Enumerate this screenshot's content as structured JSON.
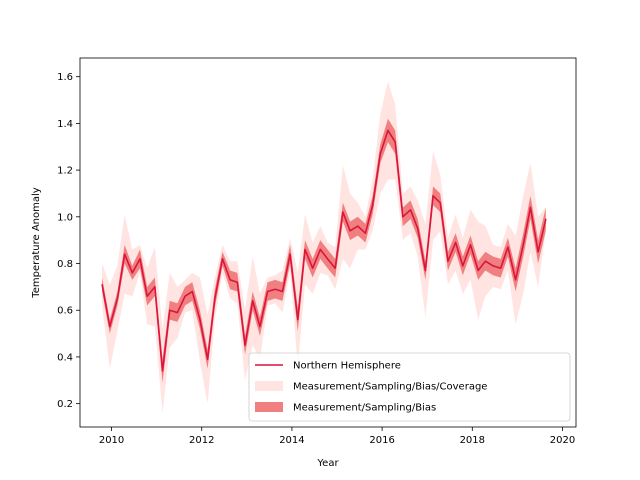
{
  "chart_data": {
    "type": "line",
    "title": "",
    "xlabel": "Year",
    "ylabel": "Temperature Anomaly",
    "xlim": [
      2009.3,
      2020.3
    ],
    "ylim": [
      0.1,
      1.68
    ],
    "x_ticks": [
      2010,
      2012,
      2014,
      2016,
      2018,
      2020
    ],
    "y_ticks": [
      0.2,
      0.4,
      0.6,
      0.8,
      1.0,
      1.2,
      1.4,
      1.6
    ],
    "x_tick_labels": [
      "2010",
      "2012",
      "2014",
      "2016",
      "2018",
      "2020"
    ],
    "y_tick_labels": [
      "0.2",
      "0.4",
      "0.6",
      "0.8",
      "1.0",
      "1.2",
      "1.4",
      "1.6"
    ],
    "grid": false,
    "legend_position": "lower-right",
    "legend": [
      {
        "label": "Northern Hemisphere",
        "kind": "line",
        "color": "#dc143c"
      },
      {
        "label": "Measurement/Sampling/Bias/Coverage",
        "kind": "band",
        "color": "#ffe4e1"
      },
      {
        "label": "Measurement/Sampling/Bias",
        "kind": "band",
        "color": "#f08080"
      }
    ],
    "series": [
      {
        "name": "Northern Hemisphere",
        "color": "#dc143c",
        "inner_band_color": "#f08080",
        "outer_band_color": "#ffe4e1",
        "x": [
          2009.79,
          2009.96,
          2010.13,
          2010.29,
          2010.46,
          2010.63,
          2010.79,
          2010.96,
          2011.13,
          2011.29,
          2011.46,
          2011.63,
          2011.79,
          2011.96,
          2012.13,
          2012.29,
          2012.46,
          2012.63,
          2012.79,
          2012.96,
          2013.13,
          2013.29,
          2013.46,
          2013.63,
          2013.79,
          2013.96,
          2014.13,
          2014.29,
          2014.46,
          2014.63,
          2014.79,
          2014.96,
          2015.13,
          2015.29,
          2015.46,
          2015.63,
          2015.79,
          2015.96,
          2016.13,
          2016.29,
          2016.46,
          2016.63,
          2016.79,
          2016.96,
          2017.13,
          2017.29,
          2017.46,
          2017.63,
          2017.79,
          2017.96,
          2018.13,
          2018.29,
          2018.46,
          2018.63,
          2018.79,
          2018.96,
          2019.13,
          2019.29,
          2019.46,
          2019.63
        ],
        "y": [
          0.71,
          0.53,
          0.65,
          0.84,
          0.76,
          0.82,
          0.66,
          0.7,
          0.34,
          0.6,
          0.59,
          0.66,
          0.68,
          0.56,
          0.39,
          0.65,
          0.82,
          0.73,
          0.72,
          0.45,
          0.64,
          0.53,
          0.68,
          0.69,
          0.68,
          0.84,
          0.56,
          0.86,
          0.78,
          0.86,
          0.82,
          0.78,
          1.02,
          0.94,
          0.96,
          0.93,
          1.05,
          1.27,
          1.37,
          1.32,
          1.0,
          1.03,
          0.95,
          0.77,
          1.09,
          1.06,
          0.81,
          0.89,
          0.79,
          0.88,
          0.77,
          0.81,
          0.79,
          0.78,
          0.87,
          0.73,
          0.88,
          1.04,
          0.85,
          0.99
        ],
        "inner_band": [
          0.03,
          0.03,
          0.03,
          0.04,
          0.03,
          0.04,
          0.04,
          0.04,
          0.05,
          0.04,
          0.04,
          0.04,
          0.04,
          0.04,
          0.04,
          0.04,
          0.03,
          0.04,
          0.04,
          0.04,
          0.04,
          0.04,
          0.04,
          0.04,
          0.04,
          0.04,
          0.05,
          0.04,
          0.04,
          0.04,
          0.04,
          0.04,
          0.04,
          0.04,
          0.04,
          0.04,
          0.04,
          0.04,
          0.05,
          0.05,
          0.04,
          0.04,
          0.04,
          0.04,
          0.04,
          0.04,
          0.04,
          0.04,
          0.04,
          0.04,
          0.04,
          0.04,
          0.04,
          0.04,
          0.04,
          0.05,
          0.05,
          0.05,
          0.05,
          0.05
        ],
        "outer_band": [
          0.09,
          0.18,
          0.14,
          0.17,
          0.1,
          0.06,
          0.12,
          0.17,
          0.18,
          0.16,
          0.11,
          0.07,
          0.08,
          0.18,
          0.19,
          0.09,
          0.06,
          0.08,
          0.09,
          0.15,
          0.19,
          0.14,
          0.06,
          0.06,
          0.09,
          0.07,
          0.2,
          0.15,
          0.11,
          0.1,
          0.07,
          0.09,
          0.2,
          0.16,
          0.1,
          0.07,
          0.11,
          0.17,
          0.21,
          0.16,
          0.1,
          0.1,
          0.12,
          0.2,
          0.19,
          0.12,
          0.1,
          0.12,
          0.12,
          0.15,
          0.21,
          0.15,
          0.09,
          0.09,
          0.1,
          0.19,
          0.21,
          0.19,
          0.15,
          0.05
        ]
      }
    ]
  }
}
